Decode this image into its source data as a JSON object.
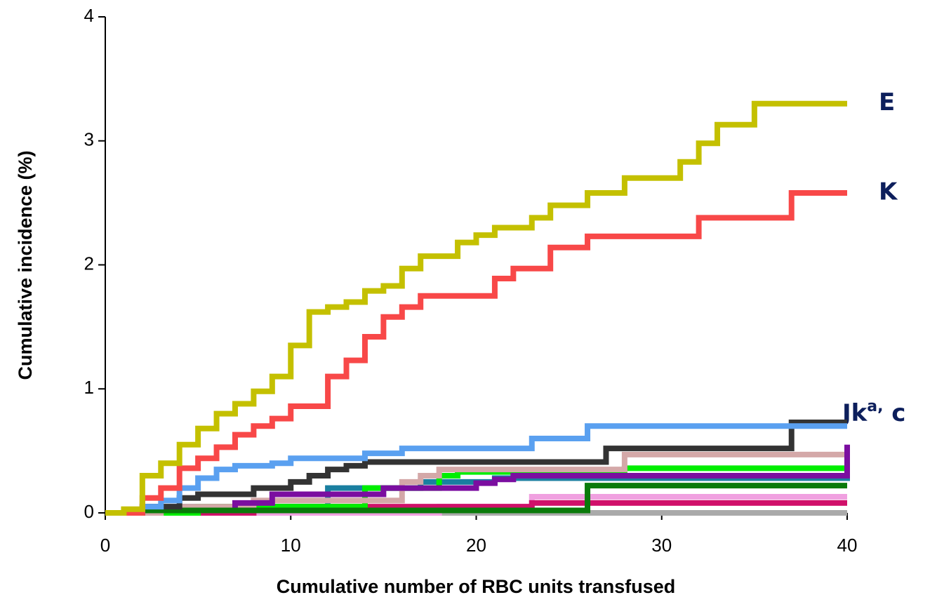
{
  "chart_data": {
    "type": "step",
    "xlabel": "Cumulative number of RBC units transfused",
    "ylabel": "Cumulative incidence (%)",
    "xlim": [
      0,
      40
    ],
    "xticks": [
      0,
      10,
      20,
      30,
      40
    ],
    "ylim": [
      0,
      4
    ],
    "yticks": [
      0,
      1,
      2,
      3,
      4
    ],
    "grid": false,
    "annotation": {
      "base": "Jk",
      "sup": "a,",
      "tail": " c"
    },
    "series": [
      {
        "color": "#aaaaaa",
        "x": [
          0,
          40
        ],
        "values": [
          0,
          0
        ]
      },
      {
        "color": "#f0a0e0",
        "x": [
          0,
          18,
          23,
          40
        ],
        "values": [
          0,
          0.05,
          0.13,
          0.13
        ]
      },
      {
        "color": "#d0106a",
        "x": [
          0,
          8,
          23,
          40
        ],
        "values": [
          0,
          0.05,
          0.08,
          0.08
        ]
      },
      {
        "color": "#1a7fa0",
        "x": [
          0,
          4,
          12,
          17,
          21,
          40
        ],
        "values": [
          0,
          0.05,
          0.2,
          0.25,
          0.28,
          0.33
        ]
      },
      {
        "color": "#00ee00",
        "x": [
          0,
          5,
          14,
          18,
          19,
          28,
          40
        ],
        "values": [
          0,
          0.05,
          0.2,
          0.3,
          0.33,
          0.36,
          0.36
        ]
      },
      {
        "color": "#d4a8a8",
        "x": [
          0,
          3,
          8,
          16,
          17,
          18,
          28,
          40
        ],
        "values": [
          0,
          0.05,
          0.1,
          0.25,
          0.3,
          0.35,
          0.47,
          0.47
        ]
      },
      {
        "color": "#7b0ea0",
        "x": [
          0,
          2,
          7,
          9,
          15,
          20,
          21,
          22,
          40
        ],
        "values": [
          0,
          0.02,
          0.08,
          0.15,
          0.2,
          0.24,
          0.27,
          0.3,
          0.55
        ]
      },
      {
        "color": "#0a7a0a",
        "x": [
          0,
          2,
          26,
          40
        ],
        "values": [
          0,
          0.02,
          0.22,
          0.22
        ]
      },
      {
        "color": "#333333",
        "x": [
          0,
          2,
          4,
          5,
          8,
          10,
          11,
          12,
          13,
          14,
          27,
          37,
          40
        ],
        "values": [
          0,
          0.05,
          0.12,
          0.15,
          0.2,
          0.25,
          0.3,
          0.35,
          0.38,
          0.41,
          0.52,
          0.73,
          0.73
        ]
      },
      {
        "color": "#5aa0f0",
        "x": [
          0,
          2,
          3,
          4,
          5,
          6,
          7,
          9,
          10,
          14,
          16,
          23,
          26,
          40
        ],
        "values": [
          0,
          0.05,
          0.1,
          0.2,
          0.28,
          0.35,
          0.38,
          0.4,
          0.44,
          0.48,
          0.52,
          0.6,
          0.7,
          0.7
        ]
      },
      {
        "name": "K",
        "color": "#f84848",
        "x": [
          0,
          2,
          3,
          4,
          5,
          6,
          7,
          8,
          9,
          10,
          12,
          13,
          14,
          15,
          16,
          17,
          21,
          22,
          24,
          26,
          32,
          37,
          40
        ],
        "values": [
          0,
          0.12,
          0.2,
          0.36,
          0.44,
          0.53,
          0.63,
          0.7,
          0.76,
          0.86,
          1.1,
          1.23,
          1.42,
          1.58,
          1.66,
          1.75,
          1.89,
          1.97,
          2.14,
          2.23,
          2.38,
          2.58,
          2.58
        ]
      },
      {
        "name": "E",
        "color": "#c4c000",
        "x": [
          0,
          1,
          2,
          3,
          4,
          5,
          6,
          7,
          8,
          9,
          10,
          11,
          12,
          13,
          14,
          15,
          16,
          17,
          19,
          20,
          21,
          23,
          24,
          26,
          28,
          31,
          32,
          33,
          35,
          40
        ],
        "values": [
          0,
          0.03,
          0.3,
          0.4,
          0.55,
          0.68,
          0.8,
          0.88,
          0.98,
          1.1,
          1.35,
          1.62,
          1.66,
          1.7,
          1.79,
          1.83,
          1.97,
          2.07,
          2.18,
          2.24,
          2.3,
          2.38,
          2.48,
          2.58,
          2.7,
          2.83,
          2.98,
          3.13,
          3.3,
          3.3
        ]
      }
    ]
  }
}
